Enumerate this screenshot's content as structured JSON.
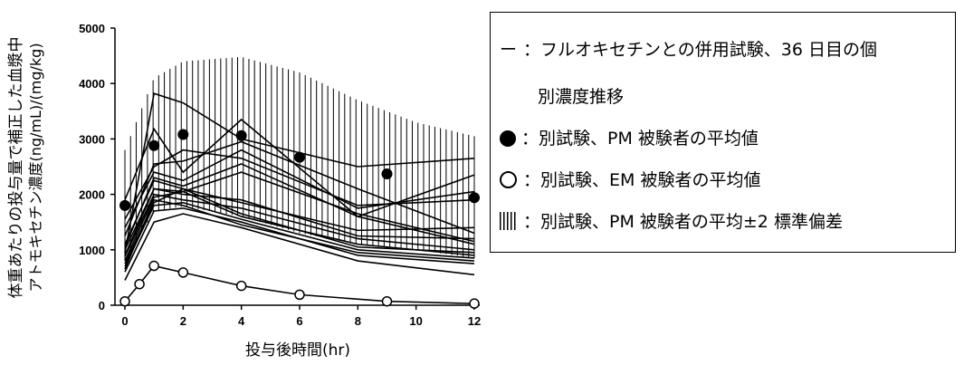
{
  "chart_data": {
    "type": "line",
    "xlabel": "投与後時間(hr)",
    "ylabel_line1": "体重あたりの投与量で補正した血漿中",
    "ylabel_line2": "アトモキセチン濃度(ng/mL)/(mg/kg)",
    "xlim": [
      0,
      12
    ],
    "ylim": [
      0,
      5000
    ],
    "xticks": [
      0,
      2,
      4,
      6,
      8,
      10,
      12
    ],
    "yticks": [
      0,
      1000,
      2000,
      3000,
      4000,
      5000
    ],
    "individual_lines": [
      {
        "x": [
          0,
          1,
          2,
          4,
          8,
          12
        ],
        "y": [
          950,
          3820,
          3650,
          3000,
          2500,
          2650
        ]
      },
      {
        "x": [
          0,
          1,
          2,
          4,
          8,
          12
        ],
        "y": [
          1900,
          3180,
          2400,
          3350,
          1600,
          2350
        ]
      },
      {
        "x": [
          0,
          1,
          2,
          4,
          8,
          12
        ],
        "y": [
          1550,
          2500,
          2800,
          2650,
          1800,
          1900
        ]
      },
      {
        "x": [
          0,
          1,
          2,
          4,
          8,
          12
        ],
        "y": [
          1250,
          2550,
          2600,
          2950,
          2100,
          1300
        ]
      },
      {
        "x": [
          0,
          1,
          2,
          4,
          8,
          12
        ],
        "y": [
          1400,
          2400,
          2250,
          2800,
          1750,
          2050
        ]
      },
      {
        "x": [
          0,
          1,
          2,
          4,
          8,
          12
        ],
        "y": [
          1050,
          2300,
          2150,
          2550,
          1600,
          1100
        ]
      },
      {
        "x": [
          0,
          1,
          2,
          4,
          8,
          12
        ],
        "y": [
          900,
          2100,
          2050,
          2400,
          1650,
          1150
        ]
      },
      {
        "x": [
          0,
          1,
          2,
          4,
          8,
          12
        ],
        "y": [
          1100,
          2250,
          2100,
          1850,
          1350,
          1400
        ]
      },
      {
        "x": [
          0,
          1,
          2,
          4,
          8,
          12
        ],
        "y": [
          1000,
          2100,
          2000,
          1900,
          1250,
          1200
        ]
      },
      {
        "x": [
          0,
          1,
          2,
          4,
          8,
          12
        ],
        "y": [
          880,
          2000,
          1900,
          1750,
          1200,
          1000
        ]
      },
      {
        "x": [
          0,
          1,
          2,
          4,
          8,
          12
        ],
        "y": [
          800,
          1950,
          2050,
          1600,
          1100,
          900
        ]
      },
      {
        "x": [
          0,
          1,
          2,
          4,
          8,
          12
        ],
        "y": [
          750,
          1850,
          2100,
          1650,
          1050,
          950
        ]
      },
      {
        "x": [
          0,
          1,
          2,
          4,
          8,
          12
        ],
        "y": [
          700,
          1800,
          1850,
          1550,
          1000,
          850
        ]
      },
      {
        "x": [
          0,
          1,
          2,
          4,
          8,
          12
        ],
        "y": [
          450,
          1500,
          1650,
          1400,
          800,
          550
        ]
      },
      {
        "x": [
          0,
          1,
          2,
          4,
          8,
          12
        ],
        "y": [
          650,
          1900,
          1800,
          1450,
          950,
          800
        ]
      },
      {
        "x": [
          0,
          1,
          2,
          4,
          8,
          12
        ],
        "y": [
          600,
          1700,
          1750,
          1500,
          900,
          750
        ]
      }
    ],
    "pm_mean": {
      "x": [
        0,
        1,
        2,
        4,
        6,
        9,
        12
      ],
      "y": [
        1800,
        2880,
        3080,
        3060,
        2670,
        2370,
        1940
      ]
    },
    "em_mean": {
      "x": [
        0,
        0.5,
        1,
        2,
        4,
        6,
        9,
        12
      ],
      "y": [
        70,
        380,
        710,
        590,
        350,
        190,
        70,
        30
      ]
    },
    "pm_sd_band": {
      "x": [
        0,
        1,
        2,
        4,
        6,
        8,
        10,
        12
      ],
      "upper": [
        2800,
        4100,
        4400,
        4480,
        4200,
        3700,
        3300,
        3050
      ],
      "lower": [
        800,
        1700,
        1780,
        1600,
        1300,
        1100,
        1000,
        850
      ]
    }
  },
  "legend": {
    "item1_symbol": "ー",
    "item1_text": "：フルオキセチンとの併用試験、36 日目の個",
    "item1_text_cont": "別濃度推移",
    "item2_text": "：別試験、PM 被験者の平均値",
    "item3_text": "：別試験、EM 被験者の平均値",
    "item4_text": "：別試験、PM 被験者の平均±2 標準偏差"
  }
}
